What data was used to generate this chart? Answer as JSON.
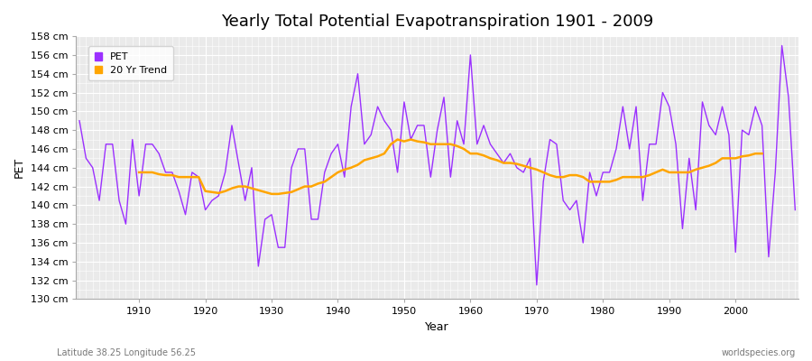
{
  "title": "Yearly Total Potential Evapotranspiration 1901 - 2009",
  "xlabel": "Year",
  "ylabel": "PET",
  "subtitle_left": "Latitude 38.25 Longitude 56.25",
  "subtitle_right": "worldspecies.org",
  "ylim": [
    130,
    158
  ],
  "ytick_step": 2,
  "years": [
    1901,
    1902,
    1903,
    1904,
    1905,
    1906,
    1907,
    1908,
    1909,
    1910,
    1911,
    1912,
    1913,
    1914,
    1915,
    1916,
    1917,
    1918,
    1919,
    1920,
    1921,
    1922,
    1923,
    1924,
    1925,
    1926,
    1927,
    1928,
    1929,
    1930,
    1931,
    1932,
    1933,
    1934,
    1935,
    1936,
    1937,
    1938,
    1939,
    1940,
    1941,
    1942,
    1943,
    1944,
    1945,
    1946,
    1947,
    1948,
    1949,
    1950,
    1951,
    1952,
    1953,
    1954,
    1955,
    1956,
    1957,
    1958,
    1959,
    1960,
    1961,
    1962,
    1963,
    1964,
    1965,
    1966,
    1967,
    1968,
    1969,
    1970,
    1971,
    1972,
    1973,
    1974,
    1975,
    1976,
    1977,
    1978,
    1979,
    1980,
    1981,
    1982,
    1983,
    1984,
    1985,
    1986,
    1987,
    1988,
    1989,
    1990,
    1991,
    1992,
    1993,
    1994,
    1995,
    1996,
    1997,
    1998,
    1999,
    2000,
    2001,
    2002,
    2003,
    2004,
    2005,
    2006,
    2007,
    2008,
    2009
  ],
  "pet": [
    149.0,
    145.0,
    144.0,
    140.5,
    146.5,
    146.5,
    140.5,
    138.0,
    147.0,
    141.0,
    146.5,
    146.5,
    145.5,
    143.5,
    143.5,
    141.5,
    139.0,
    143.5,
    143.0,
    139.5,
    140.5,
    141.0,
    143.5,
    148.5,
    144.5,
    140.5,
    144.0,
    133.5,
    138.5,
    139.0,
    135.5,
    135.5,
    144.0,
    146.0,
    146.0,
    138.5,
    138.5,
    143.5,
    145.5,
    146.5,
    143.0,
    150.5,
    154.0,
    146.5,
    147.5,
    150.5,
    149.0,
    148.0,
    143.5,
    151.0,
    147.0,
    148.5,
    148.5,
    143.0,
    148.0,
    151.5,
    143.0,
    149.0,
    146.5,
    156.0,
    146.5,
    148.5,
    146.5,
    145.5,
    144.5,
    145.5,
    144.0,
    143.5,
    145.0,
    131.5,
    142.5,
    147.0,
    146.5,
    140.5,
    139.5,
    140.5,
    136.0,
    143.5,
    141.0,
    143.5,
    143.5,
    146.0,
    150.5,
    146.0,
    150.5,
    140.5,
    146.5,
    146.5,
    152.0,
    150.5,
    146.5,
    137.5,
    145.0,
    139.5,
    151.0,
    148.5,
    147.5,
    150.5,
    147.5,
    135.0,
    148.0,
    147.5,
    150.5,
    148.5,
    134.5,
    143.5,
    157.0,
    151.5,
    139.5
  ],
  "trend": [
    null,
    null,
    null,
    null,
    null,
    null,
    null,
    null,
    null,
    143.5,
    143.5,
    143.5,
    143.3,
    143.2,
    143.2,
    143.0,
    143.0,
    143.0,
    143.0,
    141.5,
    141.4,
    141.3,
    141.5,
    141.8,
    142.0,
    142.0,
    141.8,
    141.6,
    141.4,
    141.2,
    141.2,
    141.3,
    141.4,
    141.7,
    142.0,
    142.0,
    142.3,
    142.5,
    143.0,
    143.5,
    143.8,
    144.0,
    144.3,
    144.8,
    145.0,
    145.2,
    145.5,
    146.5,
    147.0,
    146.8,
    147.0,
    146.8,
    146.7,
    146.5,
    146.5,
    146.5,
    146.5,
    146.3,
    146.0,
    145.5,
    145.5,
    145.3,
    145.0,
    144.8,
    144.5,
    144.5,
    144.4,
    144.2,
    144.0,
    143.8,
    143.5,
    143.2,
    143.0,
    143.0,
    143.2,
    143.2,
    143.0,
    142.5,
    142.5,
    142.5,
    142.5,
    142.7,
    143.0,
    143.0,
    143.0,
    143.0,
    143.2,
    143.5,
    143.8,
    143.5,
    143.5,
    143.5,
    143.5,
    143.8,
    144.0,
    144.2,
    144.5,
    145.0,
    145.0,
    145.0,
    145.2,
    145.3,
    145.5,
    145.5,
    null,
    null,
    null,
    null,
    null
  ],
  "pet_color": "#9B30FF",
  "trend_color": "#FFA500",
  "plot_bg_color": "#EAEAEA",
  "fig_bg_color": "#FFFFFF",
  "grid_color": "#FFFFFF",
  "pet_linewidth": 1.0,
  "trend_linewidth": 1.8,
  "legend_pet_label": "PET",
  "legend_trend_label": "20 Yr Trend",
  "title_fontsize": 13,
  "axis_label_fontsize": 9,
  "tick_fontsize": 8,
  "legend_fontsize": 8
}
